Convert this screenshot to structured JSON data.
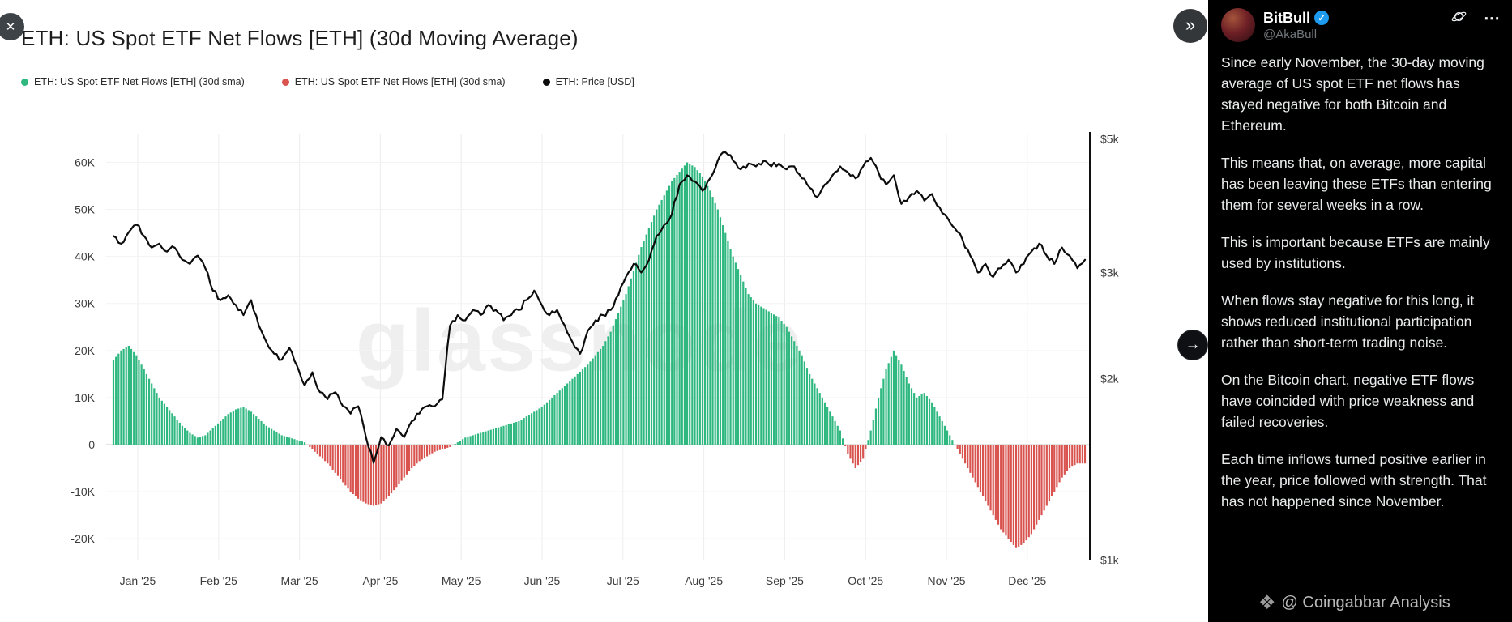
{
  "chart_data": {
    "type": "bar",
    "title": "ETH: US Spot ETF Net Flows [ETH] (30d Moving Average)",
    "watermark_text": "glassnode",
    "x_ticks": [
      "Jan '25",
      "Feb '25",
      "Mar '25",
      "Apr '25",
      "May '25",
      "Jun '25",
      "Jul '25",
      "Aug '25",
      "Sep '25",
      "Oct '25",
      "Nov '25",
      "Dec '25"
    ],
    "sample_interval_days": 3,
    "legend": [
      {
        "label": "ETH: US Spot ETF Net Flows [ETH] (30d sma)",
        "color": "#2eb880"
      },
      {
        "label": "ETH: US Spot ETF Net Flows [ETH] (30d sma)",
        "color": "#d9534f"
      },
      {
        "label": "ETH: Price [USD]",
        "color": "#0c0c0c"
      }
    ],
    "left_axis": {
      "label_ticks": [
        "60K",
        "50K",
        "40K",
        "30K",
        "20K",
        "10K",
        "0",
        "-10K",
        "-20K"
      ],
      "tick_values": [
        60,
        50,
        40,
        30,
        20,
        10,
        0,
        -10,
        -20
      ],
      "units": "ETH (thousands)"
    },
    "right_axis": {
      "label_ticks": [
        "$5k",
        "$3k",
        "$2k",
        "$1k"
      ],
      "tick_values_k": [
        5,
        3,
        2,
        1
      ],
      "scale": "log",
      "units": "USD"
    },
    "series": [
      {
        "name": "ETH: US Spot ETF Net Flows [ETH] (30d sma)",
        "render": "bar",
        "axis": "left",
        "units": "K ETH",
        "positive_color": "#2eb880",
        "negative_color": "#d9534f",
        "values": [
          18,
          20,
          21,
          19,
          16,
          13,
          10,
          8,
          6,
          4,
          2.5,
          1.5,
          2,
          3.5,
          5,
          6.5,
          7.5,
          8,
          7,
          5.5,
          4,
          3,
          2,
          1.5,
          1,
          0.5,
          -1,
          -2.5,
          -4,
          -6,
          -8,
          -10,
          -11.5,
          -12.5,
          -13,
          -12.5,
          -11,
          -9,
          -7,
          -5,
          -3.5,
          -2.5,
          -1.5,
          -1,
          -0.5,
          0.5,
          1.5,
          2,
          2.5,
          3,
          3.5,
          4,
          4.5,
          5,
          6,
          7,
          8,
          9.5,
          11,
          12.5,
          14,
          15.5,
          17,
          19,
          21,
          24,
          28,
          32,
          37,
          42,
          46,
          50,
          53,
          56,
          58,
          60,
          59,
          57,
          54,
          50,
          45,
          40,
          36,
          32,
          30,
          29,
          28,
          27,
          25,
          22,
          19,
          15,
          12,
          9,
          6,
          3,
          -2,
          -5,
          -3,
          3,
          10,
          16,
          20,
          17,
          13,
          10,
          11,
          9,
          6,
          3,
          0,
          -3,
          -6,
          -9,
          -12,
          -15,
          -18,
          -20,
          -22,
          -21,
          -19,
          -16,
          -13,
          -10,
          -7,
          -5,
          -4,
          -4
        ]
      },
      {
        "name": "ETH: Price [USD]",
        "render": "line",
        "axis": "right",
        "units": "USD (thousands)",
        "color": "#0c0c0c",
        "values": [
          3.45,
          3.35,
          3.5,
          3.6,
          3.45,
          3.3,
          3.35,
          3.25,
          3.3,
          3.15,
          3.1,
          3.2,
          3.05,
          2.8,
          2.7,
          2.75,
          2.65,
          2.55,
          2.7,
          2.45,
          2.3,
          2.2,
          2.15,
          2.25,
          2.1,
          1.95,
          2.05,
          1.9,
          1.85,
          1.9,
          1.8,
          1.75,
          1.8,
          1.6,
          1.45,
          1.6,
          1.55,
          1.65,
          1.6,
          1.7,
          1.75,
          1.8,
          1.8,
          1.85,
          2.45,
          2.55,
          2.5,
          2.6,
          2.55,
          2.65,
          2.6,
          2.5,
          2.55,
          2.6,
          2.7,
          2.8,
          2.65,
          2.55,
          2.6,
          2.45,
          2.3,
          2.2,
          2.4,
          2.5,
          2.55,
          2.6,
          2.75,
          2.95,
          3.1,
          3.0,
          3.15,
          3.45,
          3.6,
          3.75,
          4.2,
          4.35,
          4.25,
          4.1,
          4.3,
          4.6,
          4.75,
          4.6,
          4.45,
          4.55,
          4.5,
          4.6,
          4.5,
          4.55,
          4.45,
          4.5,
          4.3,
          4.15,
          4.0,
          4.2,
          4.35,
          4.5,
          4.4,
          4.3,
          4.5,
          4.65,
          4.4,
          4.2,
          4.35,
          3.9,
          4.0,
          4.1,
          3.95,
          4.05,
          3.85,
          3.7,
          3.55,
          3.4,
          3.2,
          3.0,
          3.1,
          2.95,
          3.05,
          3.15,
          3.0,
          3.1,
          3.25,
          3.35,
          3.2,
          3.1,
          3.3,
          3.2,
          3.05,
          3.15
        ]
      }
    ]
  },
  "post": {
    "author": "BitBull",
    "verified": true,
    "handle": "@AkaBull_",
    "paragraphs": [
      "Since early November, the 30-day moving average of US spot ETF net flows has stayed negative for both Bitcoin and Ethereum.",
      "This means that, on average, more capital has been leaving these ETFs than entering them for several weeks in a row.",
      "This is important because ETFs are mainly used by institutions.",
      "When flows stay negative for this long, it shows reduced institutional participation rather than short-term trading noise.",
      "On the Bitcoin chart, negative ETF flows have coincided with price weakness and failed recoveries.",
      "Each time inflows turned positive earlier in the year, price followed with strength. That has not happened since November."
    ],
    "watermark": "@ Coingabbar Analysis",
    "watermark_logo": "❖"
  },
  "controls": {
    "close": "✕",
    "collapse": "»",
    "next": "→",
    "ellipsis": "⋯"
  }
}
